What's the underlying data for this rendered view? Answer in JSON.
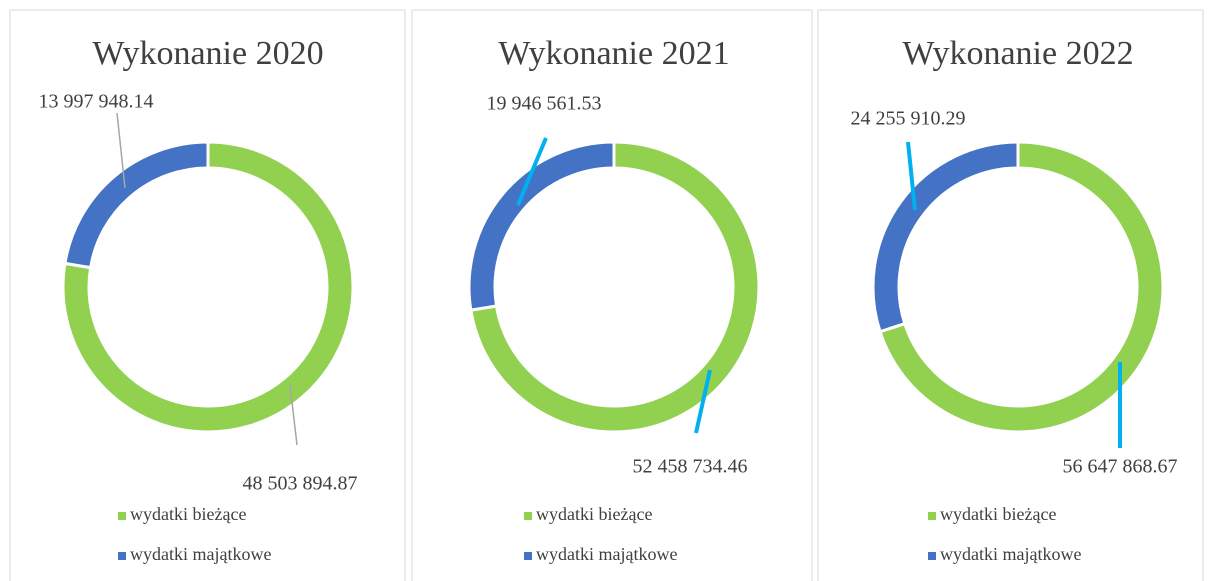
{
  "chart_data": [
    {
      "type": "doughnut",
      "title": "Wykonanie 2020",
      "categories": [
        "wydatki bieżące",
        "wydatki majątkowe"
      ],
      "values": [
        48503894.87,
        13997948.14
      ],
      "value_labels": [
        "48 503 894.87",
        "13 997 948.14"
      ],
      "colors": [
        "#92d050",
        "#4472c4"
      ],
      "legend": "bottom"
    },
    {
      "type": "doughnut",
      "title": "Wykonanie 2021",
      "categories": [
        "wydatki bieżące",
        "wydatki majątkowe"
      ],
      "values": [
        52458734.46,
        19946561.53
      ],
      "value_labels": [
        "52 458 734.46",
        "19 946 561.53"
      ],
      "colors": [
        "#92d050",
        "#4472c4"
      ],
      "legend": "bottom"
    },
    {
      "type": "doughnut",
      "title": "Wykonanie 2022",
      "categories": [
        "wydatki bieżące",
        "wydatki majątkowe"
      ],
      "values": [
        56647868.67,
        24255910.29
      ],
      "value_labels": [
        "56 647 868.67",
        "24 255 910.29"
      ],
      "colors": [
        "#92d050",
        "#4472c4"
      ],
      "legend": "bottom"
    }
  ]
}
